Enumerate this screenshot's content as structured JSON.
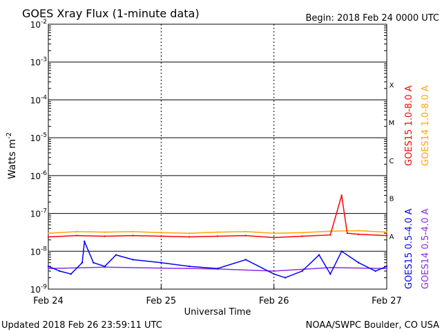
{
  "chart_data": {
    "type": "line",
    "title": "GOES Xray Flux (1-minute data)",
    "begin_label": "Begin:  2018 Feb 24 0000 UTC",
    "ylabel": "Watts m",
    "ylabel_sup": "-2",
    "xlabel": "Universal Time",
    "y_scale": "log",
    "ylim": [
      1e-09,
      0.01
    ],
    "grid": true,
    "legend_placement": "right, vertical",
    "y_ticks": [
      {
        "base": "10",
        "exp": "-2"
      },
      {
        "base": "10",
        "exp": "-3"
      },
      {
        "base": "10",
        "exp": "-4"
      },
      {
        "base": "10",
        "exp": "-5"
      },
      {
        "base": "10",
        "exp": "-6"
      },
      {
        "base": "10",
        "exp": "-7"
      },
      {
        "base": "10",
        "exp": "-8"
      },
      {
        "base": "10",
        "exp": "-9"
      }
    ],
    "x_ticks": [
      "Feb 24",
      "Feb 25",
      "Feb 26",
      "Feb 27"
    ],
    "flare_classes": [
      {
        "label": "X",
        "value": 0.0001
      },
      {
        "label": "M",
        "value": 1e-05
      },
      {
        "label": "C",
        "value": 1e-06
      },
      {
        "label": "B",
        "value": 1e-07
      },
      {
        "label": "A",
        "value": 1e-08
      }
    ],
    "series": [
      {
        "name": "GOES15 1.0-8.0 A",
        "color": "#ff0000",
        "x": [
          0,
          0.25,
          0.5,
          0.75,
          1.0,
          1.25,
          1.5,
          1.75,
          2.0,
          2.25,
          2.5,
          2.6,
          2.65,
          2.75,
          3.0
        ],
        "y": [
          2.4e-08,
          2.6e-08,
          2.5e-08,
          2.6e-08,
          2.5e-08,
          2.4e-08,
          2.5e-08,
          2.6e-08,
          2.3e-08,
          2.5e-08,
          2.7e-08,
          3e-07,
          3e-08,
          2.8e-08,
          2.6e-08
        ]
      },
      {
        "name": "GOES14 1.0-8.0 A",
        "color": "#ffa500",
        "x": [
          0,
          0.25,
          0.5,
          0.75,
          1.0,
          1.25,
          1.5,
          1.75,
          2.0,
          2.25,
          2.5,
          2.75,
          3.0
        ],
        "y": [
          3e-08,
          3.3e-08,
          3.2e-08,
          3.3e-08,
          3.1e-08,
          3e-08,
          3.2e-08,
          3.3e-08,
          3e-08,
          3.1e-08,
          3.4e-08,
          3.5e-08,
          3.2e-08
        ]
      },
      {
        "name": "GOES15 0.5-4.0 A",
        "color": "#0000ff",
        "x": [
          0,
          0.1,
          0.2,
          0.3,
          0.32,
          0.4,
          0.5,
          0.6,
          0.75,
          1.0,
          1.25,
          1.5,
          1.75,
          2.0,
          2.1,
          2.25,
          2.4,
          2.5,
          2.6,
          2.75,
          2.9,
          3.0
        ],
        "y": [
          4e-09,
          3e-09,
          2.5e-09,
          5e-09,
          1.8e-08,
          5e-09,
          4e-09,
          8e-09,
          6e-09,
          5e-09,
          4e-09,
          3.5e-09,
          6e-09,
          2.5e-09,
          2e-09,
          3e-09,
          8e-09,
          2.5e-09,
          1e-08,
          5e-09,
          3e-09,
          4e-09
        ]
      },
      {
        "name": "GOES14 0.5-4.0 A",
        "color": "#8a2be2",
        "x": [
          0,
          0.5,
          1.0,
          1.5,
          2.0,
          2.5,
          3.0
        ],
        "y": [
          3.5e-09,
          3.8e-09,
          3.6e-09,
          3.4e-09,
          3e-09,
          3.7e-09,
          3.5e-09
        ]
      }
    ]
  },
  "footer": {
    "updated": "Updated 2018 Feb 26 23:59:11 UTC",
    "source": "NOAA/SWPC Boulder, CO USA"
  }
}
